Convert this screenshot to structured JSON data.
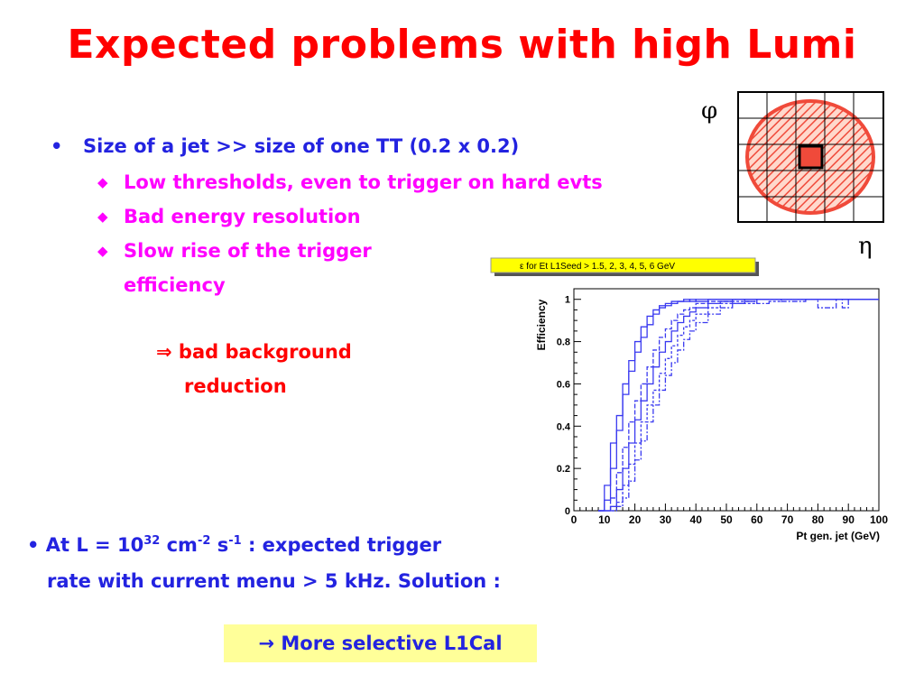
{
  "title": "Expected problems with high Lumi",
  "bullet1": {
    "text": "Size of a jet >> size of one TT (0.2 x 0.2)",
    "subs": [
      "Low thresholds, even to trigger on hard evts",
      "Bad energy resolution",
      "Slow rise of the trigger",
      "efficiency"
    ]
  },
  "conclusion": {
    "arrow": "⇒",
    "line1": "bad background",
    "line2": "reduction"
  },
  "bullet2": {
    "prefix": "At L = 10",
    "exp1": "32",
    "mid1": " cm",
    "exp2": "-2",
    "mid2": " s",
    "exp3": "-1",
    "suffix": " : expected trigger",
    "line2": "rate with current menu > 5 kHz. Solution :"
  },
  "solution": "→ More selective L1Cal",
  "diagram": {
    "phi": "φ",
    "eta": "η"
  },
  "chart_data": {
    "type": "line",
    "title": "ε for Et L1Seed > 1.5, 2, 3, 4, 5, 6 GeV",
    "xlabel": "Pt gen. jet (GeV)",
    "ylabel": "Efficiency",
    "xlim": [
      0,
      100
    ],
    "ylim": [
      0,
      1.05
    ],
    "x_ticks": [
      "0",
      "10",
      "20",
      "30",
      "40",
      "50",
      "60",
      "70",
      "80",
      "90",
      "100"
    ],
    "y_ticks": [
      "0",
      "0.2",
      "0.4",
      "0.6",
      "0.8",
      "1"
    ],
    "series_style": "step",
    "series": [
      {
        "x": [
          8,
          10,
          12,
          14,
          16,
          18,
          20,
          22,
          24,
          26,
          28,
          30,
          32,
          34,
          36,
          38,
          40,
          44,
          48,
          52,
          56,
          100
        ],
        "values": [
          0,
          0.12,
          0.32,
          0.45,
          0.6,
          0.71,
          0.8,
          0.87,
          0.92,
          0.95,
          0.97,
          0.98,
          0.99,
          0.99,
          1,
          0.99,
          1,
          1,
          1,
          1,
          1,
          1
        ]
      },
      {
        "x": [
          8,
          10,
          12,
          14,
          16,
          18,
          20,
          22,
          24,
          26,
          28,
          30,
          32,
          34,
          36,
          38,
          40,
          44,
          48,
          52,
          56,
          100
        ],
        "values": [
          0,
          0.05,
          0.2,
          0.38,
          0.55,
          0.66,
          0.75,
          0.82,
          0.88,
          0.93,
          0.96,
          0.97,
          0.98,
          0.99,
          0.99,
          1,
          0.99,
          1,
          1,
          1,
          1,
          1
        ]
      },
      {
        "x": [
          8,
          10,
          12,
          14,
          16,
          18,
          20,
          22,
          24,
          26,
          28,
          30,
          32,
          34,
          36,
          38,
          40,
          44,
          48,
          52,
          56,
          60,
          100
        ],
        "values": [
          0,
          0,
          0.06,
          0.18,
          0.3,
          0.42,
          0.52,
          0.6,
          0.68,
          0.76,
          0.82,
          0.86,
          0.9,
          0.93,
          0.95,
          0.96,
          0.98,
          0.99,
          0.99,
          1,
          0.99,
          1,
          1
        ]
      },
      {
        "x": [
          8,
          10,
          12,
          14,
          16,
          18,
          20,
          22,
          24,
          26,
          28,
          30,
          32,
          34,
          36,
          38,
          40,
          44,
          48,
          52,
          56,
          60,
          100
        ],
        "values": [
          0,
          0,
          0.02,
          0.1,
          0.2,
          0.32,
          0.43,
          0.52,
          0.6,
          0.68,
          0.75,
          0.8,
          0.85,
          0.89,
          0.92,
          0.94,
          0.96,
          0.98,
          0.99,
          0.98,
          1,
          1,
          1
        ]
      },
      {
        "x": [
          8,
          10,
          12,
          14,
          16,
          18,
          20,
          22,
          24,
          26,
          28,
          30,
          32,
          34,
          36,
          38,
          40,
          44,
          48,
          52,
          56,
          60,
          64,
          68,
          100
        ],
        "values": [
          0,
          0,
          0,
          0.04,
          0.12,
          0.22,
          0.32,
          0.42,
          0.5,
          0.57,
          0.65,
          0.72,
          0.78,
          0.83,
          0.87,
          0.9,
          0.93,
          0.96,
          0.98,
          0.99,
          0.98,
          1,
          0.99,
          1,
          1
        ]
      },
      {
        "x": [
          8,
          10,
          12,
          14,
          16,
          18,
          20,
          22,
          24,
          26,
          28,
          30,
          32,
          34,
          36,
          38,
          40,
          44,
          48,
          52,
          56,
          60,
          64,
          68,
          76,
          80,
          86,
          88,
          90,
          100
        ],
        "values": [
          0,
          0,
          0,
          0.02,
          0.06,
          0.14,
          0.24,
          0.33,
          0.42,
          0.5,
          0.57,
          0.64,
          0.7,
          0.76,
          0.81,
          0.85,
          0.89,
          0.93,
          0.96,
          0.98,
          0.99,
          0.98,
          1,
          0.99,
          1,
          0.96,
          1,
          0.96,
          1,
          1
        ]
      }
    ]
  }
}
